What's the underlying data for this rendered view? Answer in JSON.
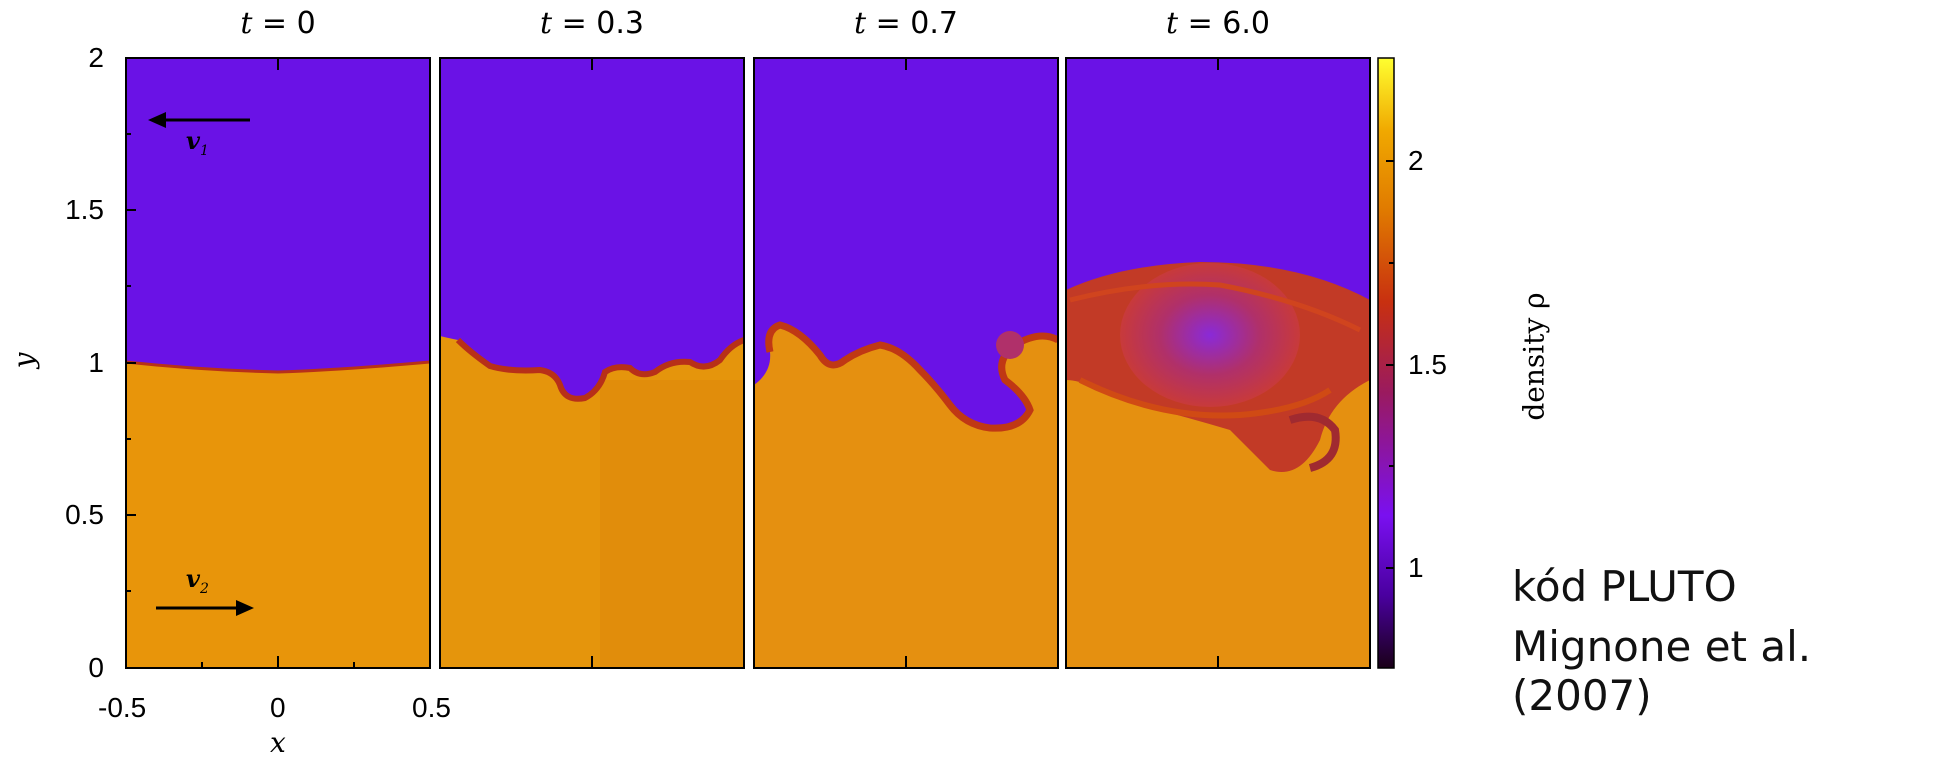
{
  "panels": [
    {
      "title_var": "t",
      "title_value": "= 0"
    },
    {
      "title_var": "t",
      "title_value": "= 0.3"
    },
    {
      "title_var": "t",
      "title_value": "= 0.7"
    },
    {
      "title_var": "t",
      "title_value": "= 6.0"
    }
  ],
  "y_ticks": [
    "2",
    "1.5",
    "1",
    "0.5",
    "0"
  ],
  "x_ticks": [
    "-0.5",
    "0",
    "0.5"
  ],
  "x_label": "x",
  "y_label": "y",
  "velocity_labels": {
    "upper": "v",
    "upper_sub": "1",
    "lower": "v",
    "lower_sub": "2"
  },
  "colorbar": {
    "label": "density ρ",
    "ticks": [
      "2",
      "1.5",
      "1"
    ],
    "colors": [
      "#200020",
      "#5a00b0",
      "#7a10f0",
      "#a02020",
      "#c83010",
      "#e07a00",
      "#f0a000",
      "#ffff30"
    ]
  },
  "colors": {
    "upper_fluid": "#6a12e6",
    "lower_fluid": "#e8950a",
    "interface": "#b83018"
  },
  "credit": {
    "line1": "kód PLUTO",
    "line2": "Mignone et al. (2007)"
  }
}
